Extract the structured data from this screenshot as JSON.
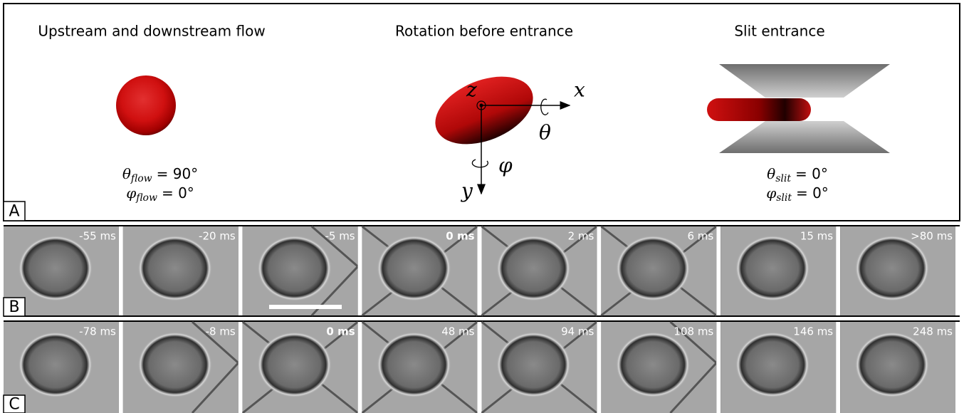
{
  "panel_a": {
    "label": "A",
    "sections": [
      {
        "title": "Upstream and downstream flow",
        "equations": [
          {
            "symbol": "θ",
            "subscript": "flow",
            "rhs": "= 90°"
          },
          {
            "symbol": "φ",
            "subscript": "flow",
            "rhs": "= 0°"
          }
        ]
      },
      {
        "title": "Rotation before entrance",
        "axes": {
          "z": "z",
          "x": "x",
          "y": "y",
          "theta": "θ",
          "phi": "φ"
        }
      },
      {
        "title": "Slit entrance",
        "equations": [
          {
            "symbol": "θ",
            "subscript": "slit",
            "rhs": "= 0°"
          },
          {
            "symbol": "φ",
            "subscript": "slit",
            "rhs": "= 0°"
          }
        ]
      }
    ]
  },
  "panel_b": {
    "label": "B",
    "highlight_frame": 3,
    "frames": [
      "-55 ms",
      "-20 ms",
      "-5 ms",
      "0 ms",
      "2 ms",
      "6 ms",
      "15 ms",
      ">80 ms"
    ]
  },
  "panel_c": {
    "label": "C",
    "highlight_frame": 2,
    "frames": [
      "-78 ms",
      "-8 ms",
      "0 ms",
      "48 ms",
      "94 ms",
      "108 ms",
      "146 ms",
      "248 ms"
    ]
  }
}
